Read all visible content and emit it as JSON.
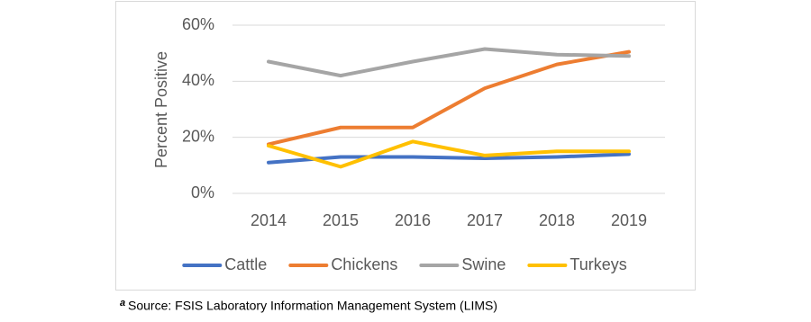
{
  "chart_data": {
    "type": "line",
    "y_label": "Percent Positive",
    "categories": [
      "2014",
      "2015",
      "2016",
      "2017",
      "2018",
      "2019"
    ],
    "series": [
      {
        "name": "Cattle",
        "color": "#4472c4",
        "values": [
          11,
          13,
          13,
          12.5,
          13,
          14
        ]
      },
      {
        "name": "Chickens",
        "color": "#ed7d31",
        "values": [
          17.5,
          23.5,
          23.5,
          37.5,
          46,
          50.5
        ]
      },
      {
        "name": "Swine",
        "color": "#a5a5a5",
        "values": [
          47,
          42,
          47,
          51.5,
          49.5,
          49
        ]
      },
      {
        "name": "Turkeys",
        "color": "#ffc000",
        "values": [
          17,
          9.5,
          18.5,
          13.5,
          15,
          15
        ]
      }
    ],
    "ylim": [
      0,
      60
    ],
    "yticks": [
      {
        "value": 0,
        "label": "0%"
      },
      {
        "value": 20,
        "label": "20%"
      },
      {
        "value": 40,
        "label": "40%"
      },
      {
        "value": 60,
        "label": "60%"
      }
    ],
    "grid": true,
    "legend": "bottom",
    "footnote_marker": "a",
    "footnote": "Source: FSIS Laboratory Information Management System (LIMS)"
  }
}
